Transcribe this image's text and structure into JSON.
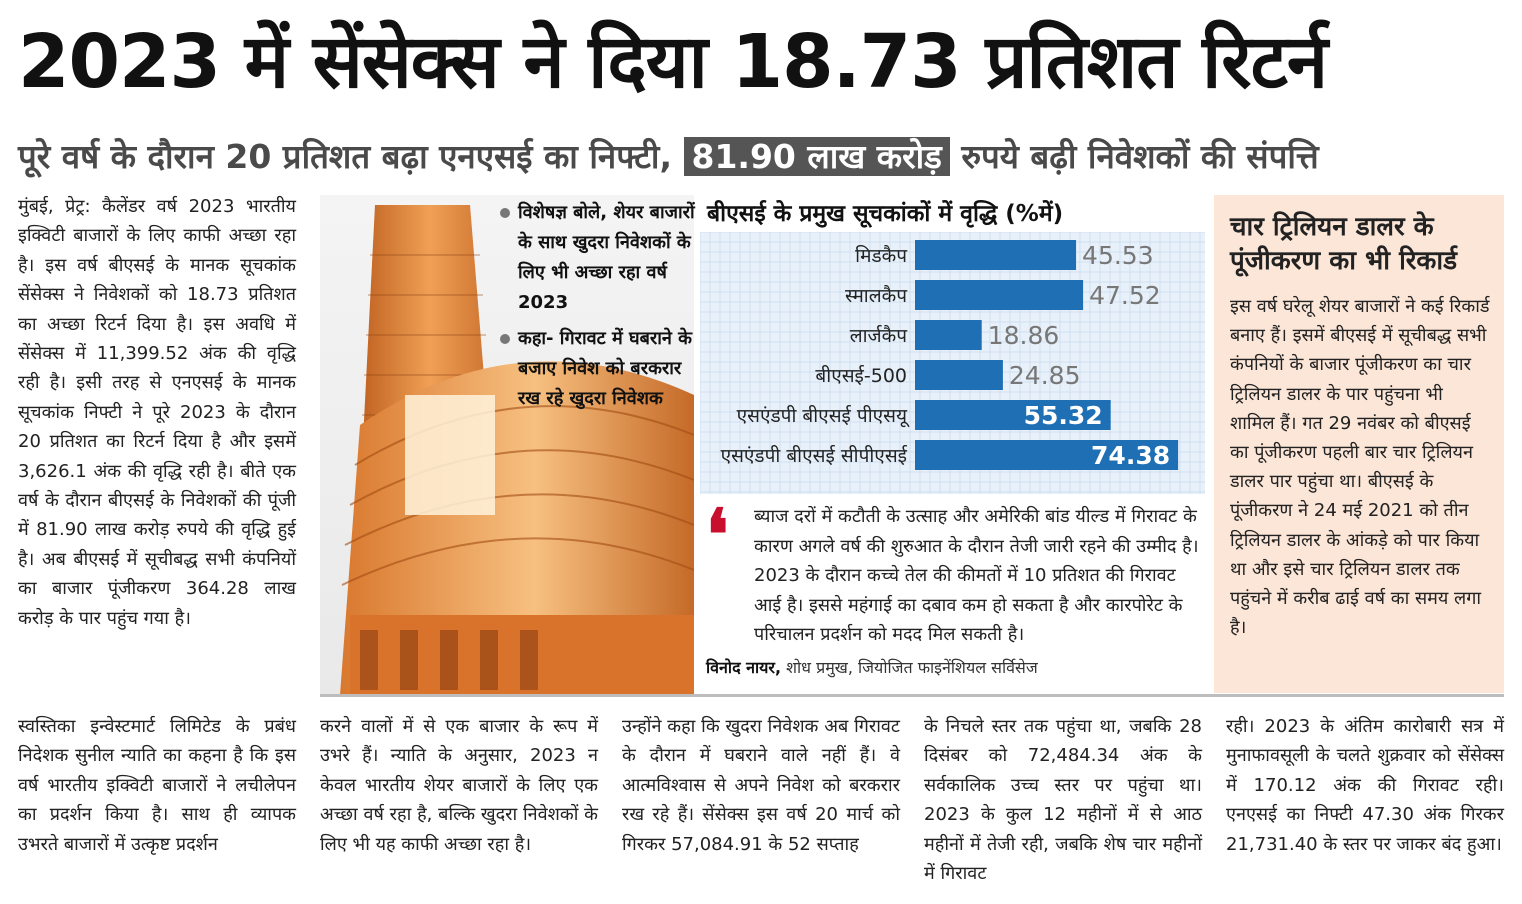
{
  "headline": "2023 में सेंसेक्स ने दिया 18.73 प्रतिशत रिटर्न",
  "subhead": {
    "part1": "पूरे वर्ष के दौरान 20 प्रतिशत बढ़ा एनएसई का निफ्टी,",
    "highlight": "81.90 लाख करोड़",
    "part2": "रुपये बढ़ी निवेशकों की संपत्ति"
  },
  "intro_column": "मुंबई, प्रेट्र: कैलेंडर वर्ष 2023 भारतीय इक्विटी बाजारों के लिए काफी अच्छा रहा है। इस वर्ष बीएसई के मानक सूचकांक सेंसेक्स ने निवेशकों को 18.73 प्रतिशत का अच्छा रिटर्न दिया है। इस अवधि में सेंसेक्स में 11,399.52 अंक की वृद्धि रही है। इसी तरह से एनएसई के मानक सूचकांक निफ्टी ने पूरे 2023 के दौरान 20 प्रतिशत का रिटर्न दिया है और इसमें 3,626.1 अंक की वृद्धि रही है। बीते एक वर्ष के दौरान बीएसई के निवेशकों की पूंजी में 81.90 लाख करोड़ रुपये की वृद्धि हुई है। अब बीएसई में सूचीबद्ध सभी कंपनियों का बाजार पूंजीकरण 364.28 लाख करोड़ के पार पहुंच गया है।",
  "bullets": [
    "विशेषज्ञ बोले, शेयर बाजारों के साथ खुदरा निवेशकों के लिए भी अच्छा रहा वर्ष 2023",
    "कहा- गिरावट में घबराने के बजाए निवेश को बरकरार रख रहे खुदरा निवेशक"
  ],
  "chart_data": {
    "type": "bar",
    "orientation": "horizontal",
    "title": "बीएसई के प्रमुख सूचकांकों में वृद्धि (%में)",
    "categories": [
      "मिडकैप",
      "स्मालकैप",
      "लार्जकैप",
      "बीएसई-500",
      "एसएंडपी बीएसई पीएसयू",
      "एसएंडपी बीएसई सीपीएसई"
    ],
    "values": [
      45.53,
      47.52,
      18.86,
      24.85,
      55.32,
      74.38
    ],
    "value_labels": [
      "45.53",
      "47.52",
      "18.86",
      "24.85",
      "55.32",
      "74.38"
    ],
    "xlim": [
      0,
      80
    ],
    "grid": true,
    "bar_color": "#1f6fb5",
    "background_color": "#e8f1fa"
  },
  "quote": {
    "text": "ब्याज दरों में कटौती के उत्साह और अमेरिकी बांड यील्ड में गिरावट के कारण अगले वर्ष की शुरुआत के दौरान तेजी जारी रहने की उम्मीद है। 2023 के दौरान कच्चे तेल की कीमतों में 10 प्रतिशत की गिरावट आई है। इससे महंगाई का दबाव कम हो सकता है और कारपोरेट के परिचालन प्रदर्शन को मदद मिल सकती है।",
    "author": "विनोद नायर,",
    "designation": "शोध प्रमुख, जियोजित फाइनेंशियल सर्विसेज"
  },
  "sidebar": {
    "title": "चार ट्रिलियन डालर के पूंजीकरण का भी रिकार्ड",
    "text": "इस वर्ष घरेलू शेयर बाजारों ने कई रिकार्ड बनाए हैं। इसमें बीएसई में सूचीबद्ध सभी कंपनियों के बाजार पूंजीकरण का चार ट्रिलियन डालर के पार पहुंचना भी शामिल हैं। गत 29 नवंबर को बीएसई का पूंजीकरण पहली बार चार ट्रिलियन डालर पार पहुंचा था। बीएसई के पूंजीकरण ने 24 मई 2021 को तीन ट्रिलियन डालर के आंकड़े को पार किया था और इसे चार ट्रिलियन डालर तक पहुंचने में करीब ढाई वर्ष का समय लगा है।",
    "bg_color": "#fbe6d8"
  },
  "bottom_columns": [
    "स्वस्तिका इन्वेस्टमार्ट लिमिटेड के प्रबंध निदेशक सुनील न्याति का कहना है कि इस वर्ष भारतीय इक्विटी बाजारों ने लचीलेपन का प्रदर्शन किया है। साथ ही व्यापक उभरते बाजारों में उत्कृष्ट प्रदर्शन",
    "करने वालों में से एक बाजार के रूप में उभरे हैं। न्याति के अनुसार, 2023 न केवल भारतीय शेयर बाजारों के लिए एक अच्छा वर्ष रहा है, बल्कि खुदरा निवेशकों के लिए भी यह काफी अच्छा रहा है।",
    "उन्होंने कहा कि खुदरा निवेशक अब गिरावट के दौरान में घबराने वाले नहीं हैं। वे आत्मविश्वास से अपने निवेश को बरकरार रख रहे हैं। सेंसेक्स इस वर्ष 20 मार्च को गिरकर 57,084.91 के 52 सप्ताह",
    "के निचले स्तर तक पहुंचा था, जबकि 28 दिसंबर को 72,484.34 अंक के सर्वकालिक उच्च स्तर पर पहुंचा था। 2023 के कुल 12 महीनों में से आठ महीनों में तेजी रही, जबकि शेष चार महीनों में गिरावट",
    "रही। 2023 के अंतिम कारोबारी सत्र में मुनाफावसूली के चलते शुक्रवार को सेंसेक्स में 170.12 अंक की गिरावट रही। एनएसई का निफ्टी 47.30 अंक गिरकर 21,731.40 के स्तर पर जाकर बंद हुआ।"
  ]
}
